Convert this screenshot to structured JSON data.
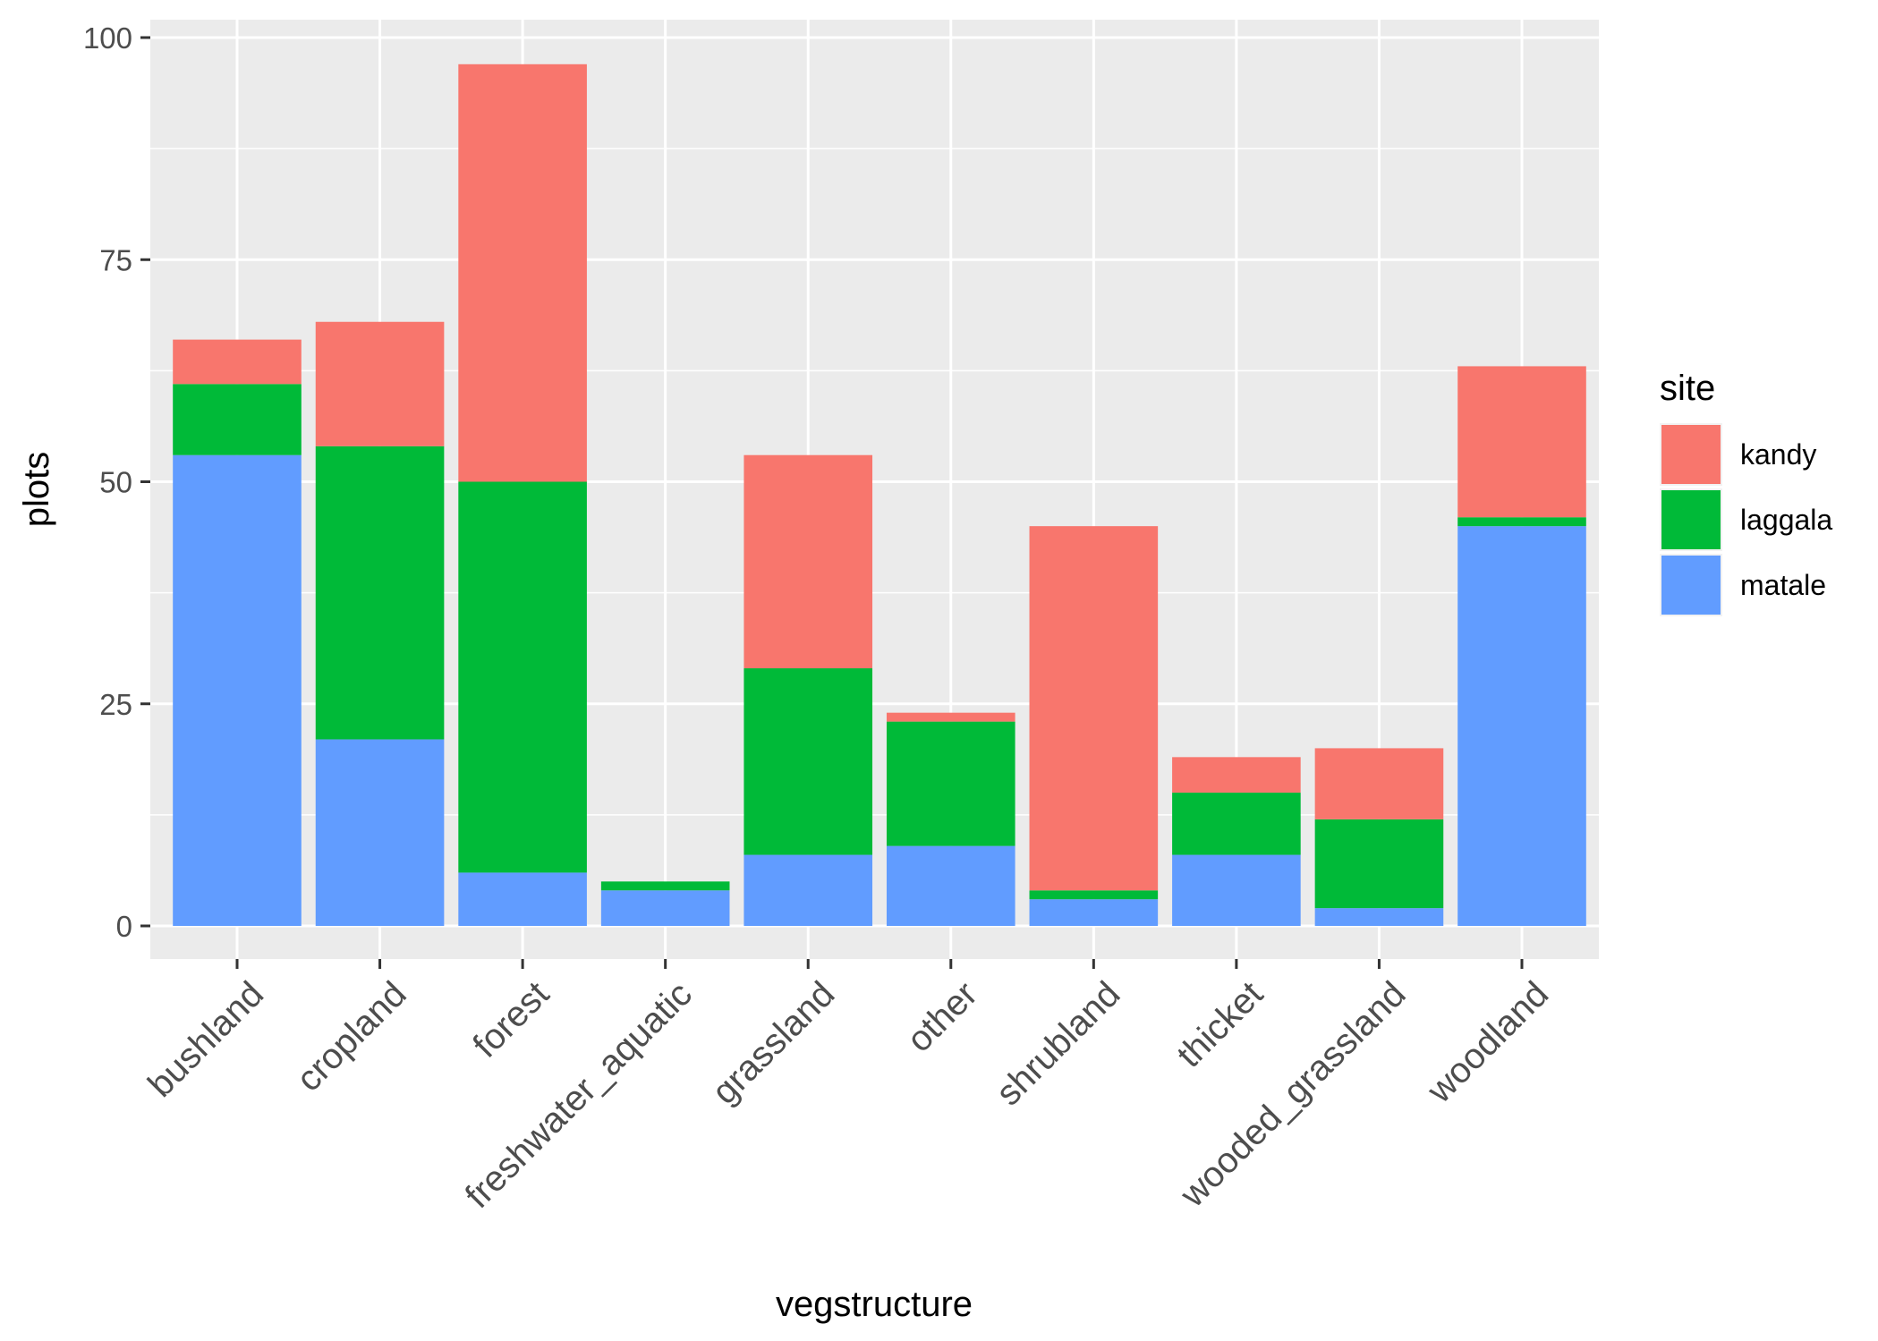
{
  "chart_data": {
    "type": "bar",
    "stacked": true,
    "xlabel": "vegstructure",
    "ylabel": "plots",
    "ylim": [
      0,
      105
    ],
    "yticks": [
      0,
      25,
      50,
      75,
      100
    ],
    "grid": true,
    "legend": {
      "title": "site",
      "placement": "right"
    },
    "categories": [
      "bushland",
      "cropland",
      "forest",
      "freshwater_aquatic",
      "grassland",
      "other",
      "shrubland",
      "thicket",
      "wooded_grassland",
      "woodland"
    ],
    "series": [
      {
        "name": "matale",
        "color": "#619CFF",
        "values": [
          53,
          21,
          6,
          4,
          8,
          9,
          3,
          8,
          2,
          45
        ]
      },
      {
        "name": "laggala",
        "color": "#00BA38",
        "values": [
          8,
          33,
          44,
          1,
          21,
          14,
          1,
          7,
          10,
          1
        ]
      },
      {
        "name": "kandy",
        "color": "#F8766D",
        "values": [
          5,
          14,
          47,
          0,
          24,
          1,
          41,
          4,
          8,
          17
        ]
      }
    ],
    "legend_order": [
      "kandy",
      "laggala",
      "matale"
    ]
  }
}
